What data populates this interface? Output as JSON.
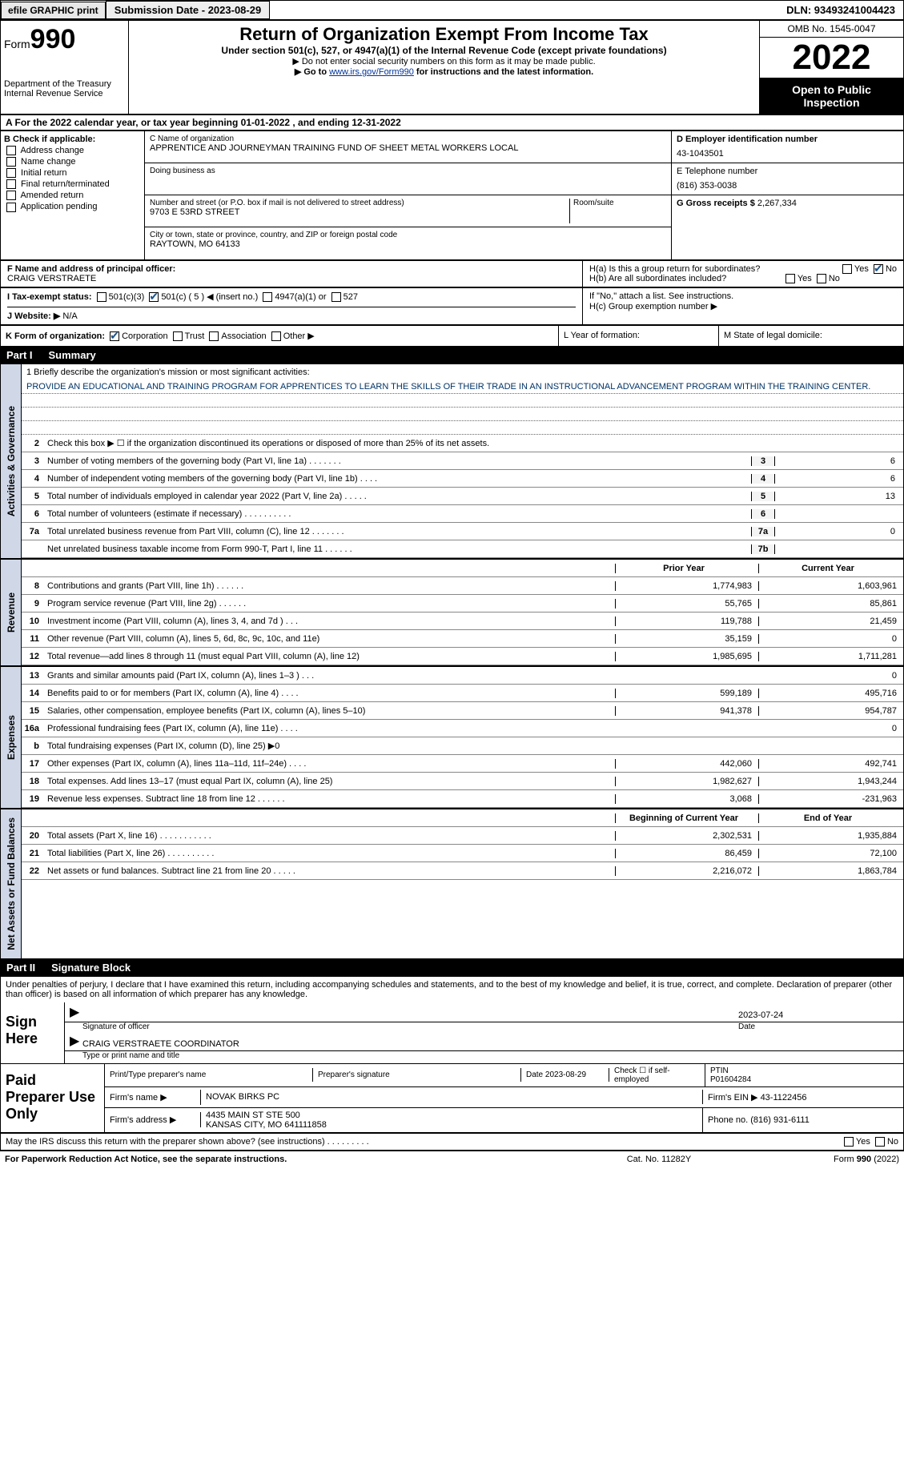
{
  "topbar": {
    "efile": "efile GRAPHIC print",
    "submission": "Submission Date - 2023-08-29",
    "dln": "DLN: 93493241004423"
  },
  "header": {
    "form_label": "Form",
    "form_num": "990",
    "dept": "Department of the Treasury\nInternal Revenue Service",
    "title": "Return of Organization Exempt From Income Tax",
    "subtitle": "Under section 501(c), 527, or 4947(a)(1) of the Internal Revenue Code (except private foundations)",
    "note1": "▶ Do not enter social security numbers on this form as it may be made public.",
    "note2_pre": "▶ Go to ",
    "note2_link": "www.irs.gov/Form990",
    "note2_post": " for instructions and the latest information.",
    "omb": "OMB No. 1545-0047",
    "year": "2022",
    "inspect": "Open to Public Inspection"
  },
  "row_a": "A  For the 2022 calendar year, or tax year beginning 01-01-2022    , and ending 12-31-2022",
  "section_b": {
    "label": "B Check if applicable:",
    "items": [
      "Address change",
      "Name change",
      "Initial return",
      "Final return/terminated",
      "Amended return",
      "Application pending"
    ]
  },
  "section_c": {
    "name_lbl": "C Name of organization",
    "name": "APPRENTICE AND JOURNEYMAN TRAINING FUND OF SHEET METAL WORKERS LOCAL",
    "dba_lbl": "Doing business as",
    "addr_lbl": "Number and street (or P.O. box if mail is not delivered to street address)",
    "room_lbl": "Room/suite",
    "addr": "9703 E 53RD STREET",
    "city_lbl": "City or town, state or province, country, and ZIP or foreign postal code",
    "city": "RAYTOWN, MO  64133"
  },
  "section_d": {
    "ein_lbl": "D Employer identification number",
    "ein": "43-1043501",
    "phone_lbl": "E Telephone number",
    "phone": "(816) 353-0038",
    "gross_lbl": "G Gross receipts $",
    "gross": "2,267,334"
  },
  "section_f": {
    "lbl": "F  Name and address of principal officer:",
    "name": "CRAIG VERSTRAETE"
  },
  "section_h": {
    "ha": "H(a)  Is this a group return for subordinates?",
    "hb": "H(b)  Are all subordinates included?",
    "hb_note": "If \"No,\" attach a list. See instructions.",
    "hc": "H(c)  Group exemption number ▶"
  },
  "row_i": {
    "lbl": "I   Tax-exempt status:",
    "c3": "501(c)(3)",
    "c5": "501(c) ( 5 ) ◀ (insert no.)",
    "a1": "4947(a)(1) or",
    "s527": "527"
  },
  "row_j": {
    "lbl": "J   Website: ▶",
    "val": "N/A"
  },
  "row_k": {
    "lbl": "K Form of organization:",
    "corp": "Corporation",
    "trust": "Trust",
    "assoc": "Association",
    "other": "Other ▶",
    "l": "L Year of formation:",
    "m": "M State of legal domicile:"
  },
  "part1": {
    "num": "Part I",
    "title": "Summary"
  },
  "mission_lbl": "1    Briefly describe the organization's mission or most significant activities:",
  "mission": "PROVIDE AN EDUCATIONAL AND TRAINING PROGRAM FOR APPRENTICES TO LEARN THE SKILLS OF THEIR TRADE IN AN INSTRUCTIONAL ADVANCEMENT PROGRAM WITHIN THE TRAINING CENTER.",
  "line2": "Check this box ▶ ☐ if the organization discontinued its operations or disposed of more than 25% of its net assets.",
  "gov_rows": [
    {
      "n": "3",
      "d": "Number of voting members of the governing body (Part VI, line 1a)   .    .    .    .    .    .    .",
      "b": "3",
      "v": "6"
    },
    {
      "n": "4",
      "d": "Number of independent voting members of the governing body (Part VI, line 1b)  .    .    .    .",
      "b": "4",
      "v": "6"
    },
    {
      "n": "5",
      "d": "Total number of individuals employed in calendar year 2022 (Part V, line 2a)  .    .    .    .    .",
      "b": "5",
      "v": "13"
    },
    {
      "n": "6",
      "d": "Total number of volunteers (estimate if necessary)    .    .    .    .    .    .    .    .    .    .",
      "b": "6",
      "v": ""
    },
    {
      "n": "7a",
      "d": "Total unrelated business revenue from Part VIII, column (C), line 12   .    .    .    .    .    .    .",
      "b": "7a",
      "v": "0"
    },
    {
      "n": "",
      "d": "Net unrelated business taxable income from Form 990-T, Part I, line 11  .    .    .    .    .    .",
      "b": "7b",
      "v": ""
    }
  ],
  "side_labels": {
    "gov": "Activities & Governance",
    "rev": "Revenue",
    "exp": "Expenses",
    "net": "Net Assets or Fund Balances"
  },
  "col_hdr": {
    "py": "Prior Year",
    "cy": "Current Year",
    "bcy": "Beginning of Current Year",
    "eoy": "End of Year"
  },
  "rev_rows": [
    {
      "n": "8",
      "d": "Contributions and grants (Part VIII, line 1h)    .    .    .    .    .    .",
      "py": "1,774,983",
      "cy": "1,603,961"
    },
    {
      "n": "9",
      "d": "Program service revenue (Part VIII, line 2g)    .    .    .    .    .    .",
      "py": "55,765",
      "cy": "85,861"
    },
    {
      "n": "10",
      "d": "Investment income (Part VIII, column (A), lines 3, 4, and 7d )    .    .    .",
      "py": "119,788",
      "cy": "21,459"
    },
    {
      "n": "11",
      "d": "Other revenue (Part VIII, column (A), lines 5, 6d, 8c, 9c, 10c, and 11e)",
      "py": "35,159",
      "cy": "0"
    },
    {
      "n": "12",
      "d": "Total revenue—add lines 8 through 11 (must equal Part VIII, column (A), line 12)",
      "py": "1,985,695",
      "cy": "1,711,281"
    }
  ],
  "exp_rows": [
    {
      "n": "13",
      "d": "Grants and similar amounts paid (Part IX, column (A), lines 1–3 )   .    .    .",
      "py": "",
      "cy": "0"
    },
    {
      "n": "14",
      "d": "Benefits paid to or for members (Part IX, column (A), line 4)   .    .    .    .",
      "py": "599,189",
      "cy": "495,716"
    },
    {
      "n": "15",
      "d": "Salaries, other compensation, employee benefits (Part IX, column (A), lines 5–10)",
      "py": "941,378",
      "cy": "954,787"
    },
    {
      "n": "16a",
      "d": "Professional fundraising fees (Part IX, column (A), line 11e)   .    .    .    .",
      "py": "",
      "cy": "0"
    },
    {
      "n": "b",
      "d": "Total fundraising expenses (Part IX, column (D), line 25) ▶0",
      "py": "",
      "cy": "",
      "shade": true
    },
    {
      "n": "17",
      "d": "Other expenses (Part IX, column (A), lines 11a–11d, 11f–24e)   .    .    .    .",
      "py": "442,060",
      "cy": "492,741"
    },
    {
      "n": "18",
      "d": "Total expenses. Add lines 13–17 (must equal Part IX, column (A), line 25)",
      "py": "1,982,627",
      "cy": "1,943,244"
    },
    {
      "n": "19",
      "d": "Revenue less expenses. Subtract line 18 from line 12   .    .    .    .    .    .",
      "py": "3,068",
      "cy": "-231,963"
    }
  ],
  "net_rows": [
    {
      "n": "20",
      "d": "Total assets (Part X, line 16)  .    .    .    .    .    .    .    .    .    .    .",
      "py": "2,302,531",
      "cy": "1,935,884"
    },
    {
      "n": "21",
      "d": "Total liabilities (Part X, line 26)  .    .    .    .    .    .    .    .    .    .",
      "py": "86,459",
      "cy": "72,100"
    },
    {
      "n": "22",
      "d": "Net assets or fund balances. Subtract line 21 from line 20   .    .    .    .    .",
      "py": "2,216,072",
      "cy": "1,863,784"
    }
  ],
  "part2": {
    "num": "Part II",
    "title": "Signature Block"
  },
  "sig": {
    "decl": "Under penalties of perjury, I declare that I have examined this return, including accompanying schedules and statements, and to the best of my knowledge and belief, it is true, correct, and complete. Declaration of preparer (other than officer) is based on all information of which preparer has any knowledge.",
    "sign_here": "Sign Here",
    "sig_officer": "Signature of officer",
    "date_lbl": "Date",
    "sig_date": "2023-07-24",
    "name_title": "CRAIG VERSTRAETE COORDINATOR",
    "type_name": "Type or print name and title"
  },
  "paid": {
    "lbl": "Paid Preparer Use Only",
    "print_name_lbl": "Print/Type preparer's name",
    "prep_sig_lbl": "Preparer's signature",
    "date": "Date 2023-08-29",
    "check_se": "Check ☐ if self-employed",
    "ptin_lbl": "PTIN",
    "ptin": "P01604284",
    "firm_name_lbl": "Firm's name     ▶",
    "firm_name": "NOVAK BIRKS PC",
    "firm_ein_lbl": "Firm's EIN ▶",
    "firm_ein": "43-1122456",
    "firm_addr_lbl": "Firm's address ▶",
    "firm_addr1": "4435 MAIN ST STE 500",
    "firm_addr2": "KANSAS CITY, MO  641111858",
    "firm_phone_lbl": "Phone no.",
    "firm_phone": "(816) 931-6111"
  },
  "footer_q": "May the IRS discuss this return with the preparer shown above? (see instructions)   .    .    .    .    .    .    .    .    .",
  "footer_yes": "Yes",
  "footer_no": "No",
  "bottom": {
    "l": "For Paperwork Reduction Act Notice, see the separate instructions.",
    "m": "Cat. No. 11282Y",
    "r": "Form 990 (2022)"
  }
}
